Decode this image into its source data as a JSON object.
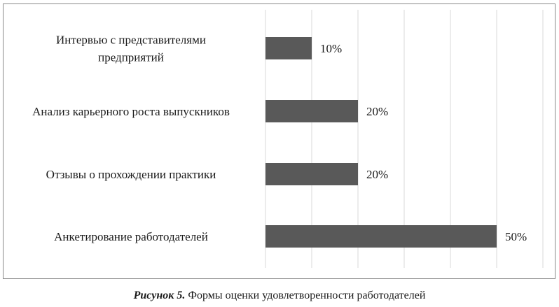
{
  "chart_data": {
    "type": "bar",
    "orientation": "horizontal",
    "categories": [
      [
        "Интервью с представителями",
        "предприятий"
      ],
      [
        "Анализ карьерного роста выпускников"
      ],
      [
        "Отзывы о прохождении практики"
      ],
      [
        "Анкетирование работодателей"
      ]
    ],
    "values": [
      10,
      20,
      20,
      50
    ],
    "value_labels": [
      "10%",
      "20%",
      "20%",
      "50%"
    ],
    "xlim": [
      0,
      60
    ],
    "x_gridlines": [
      0,
      10,
      20,
      30,
      40,
      50,
      60
    ],
    "x_tick_labels_shown": false,
    "grid": true,
    "legend": "none",
    "bar_color": "#595959",
    "gridline_color": "#d9d9d9",
    "title": "",
    "xlabel": "",
    "ylabel": ""
  },
  "caption": {
    "prefix": "Рисунок 5.",
    "text": " Формы оценки удовлетворенности работодателей"
  }
}
